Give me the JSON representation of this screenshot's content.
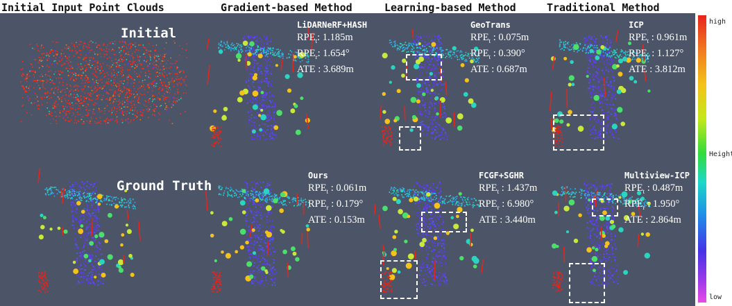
{
  "headers": {
    "col1": "Initial Input Point Clouds",
    "col2": "Gradient-based Method",
    "col3": "Learning-based Method",
    "col4": "Traditional Method"
  },
  "row_labels": {
    "initial": "Initial",
    "ground_truth": "Ground Truth"
  },
  "metric_labels": {
    "rpe": "RPE",
    "t_sub": "t",
    "r_sub": "r",
    "ate": "ATE"
  },
  "methods": [
    {
      "name": "LiDARNeRF+HASH",
      "rpe_t": ": 1.185m",
      "rpe_r": ": 1.654°",
      "ate": " : 3.689m"
    },
    {
      "name": "GeoTrans",
      "rpe_t": " : 0.075m",
      "rpe_r": " : 0.390°",
      "ate": " : 0.687m"
    },
    {
      "name": "ICP",
      "rpe_t": " : 0.961m",
      "rpe_r": " : 1.127°",
      "ate": " : 3.812m"
    },
    {
      "name": "Ours",
      "rpe_t": " : 0.061m",
      "rpe_r": " : 0.179°",
      "ate": " : 0.153m"
    },
    {
      "name": "FCGF+SGHR",
      "rpe_t": " : 1.437m",
      "rpe_r": " : 6.980°",
      "ate": " : 3.440m"
    },
    {
      "name": "Multiview-ICP",
      "rpe_t": " : 0.487m",
      "rpe_r": " : 1.950°",
      "ate": " : 2.864m"
    }
  ],
  "colorbar": {
    "high": "high",
    "mid": "Height",
    "low": "low"
  },
  "colors": {
    "panel_bg": "#4c5567",
    "noisy_red": "#ff2a1a",
    "road_purple": "#5a3ce8"
  }
}
